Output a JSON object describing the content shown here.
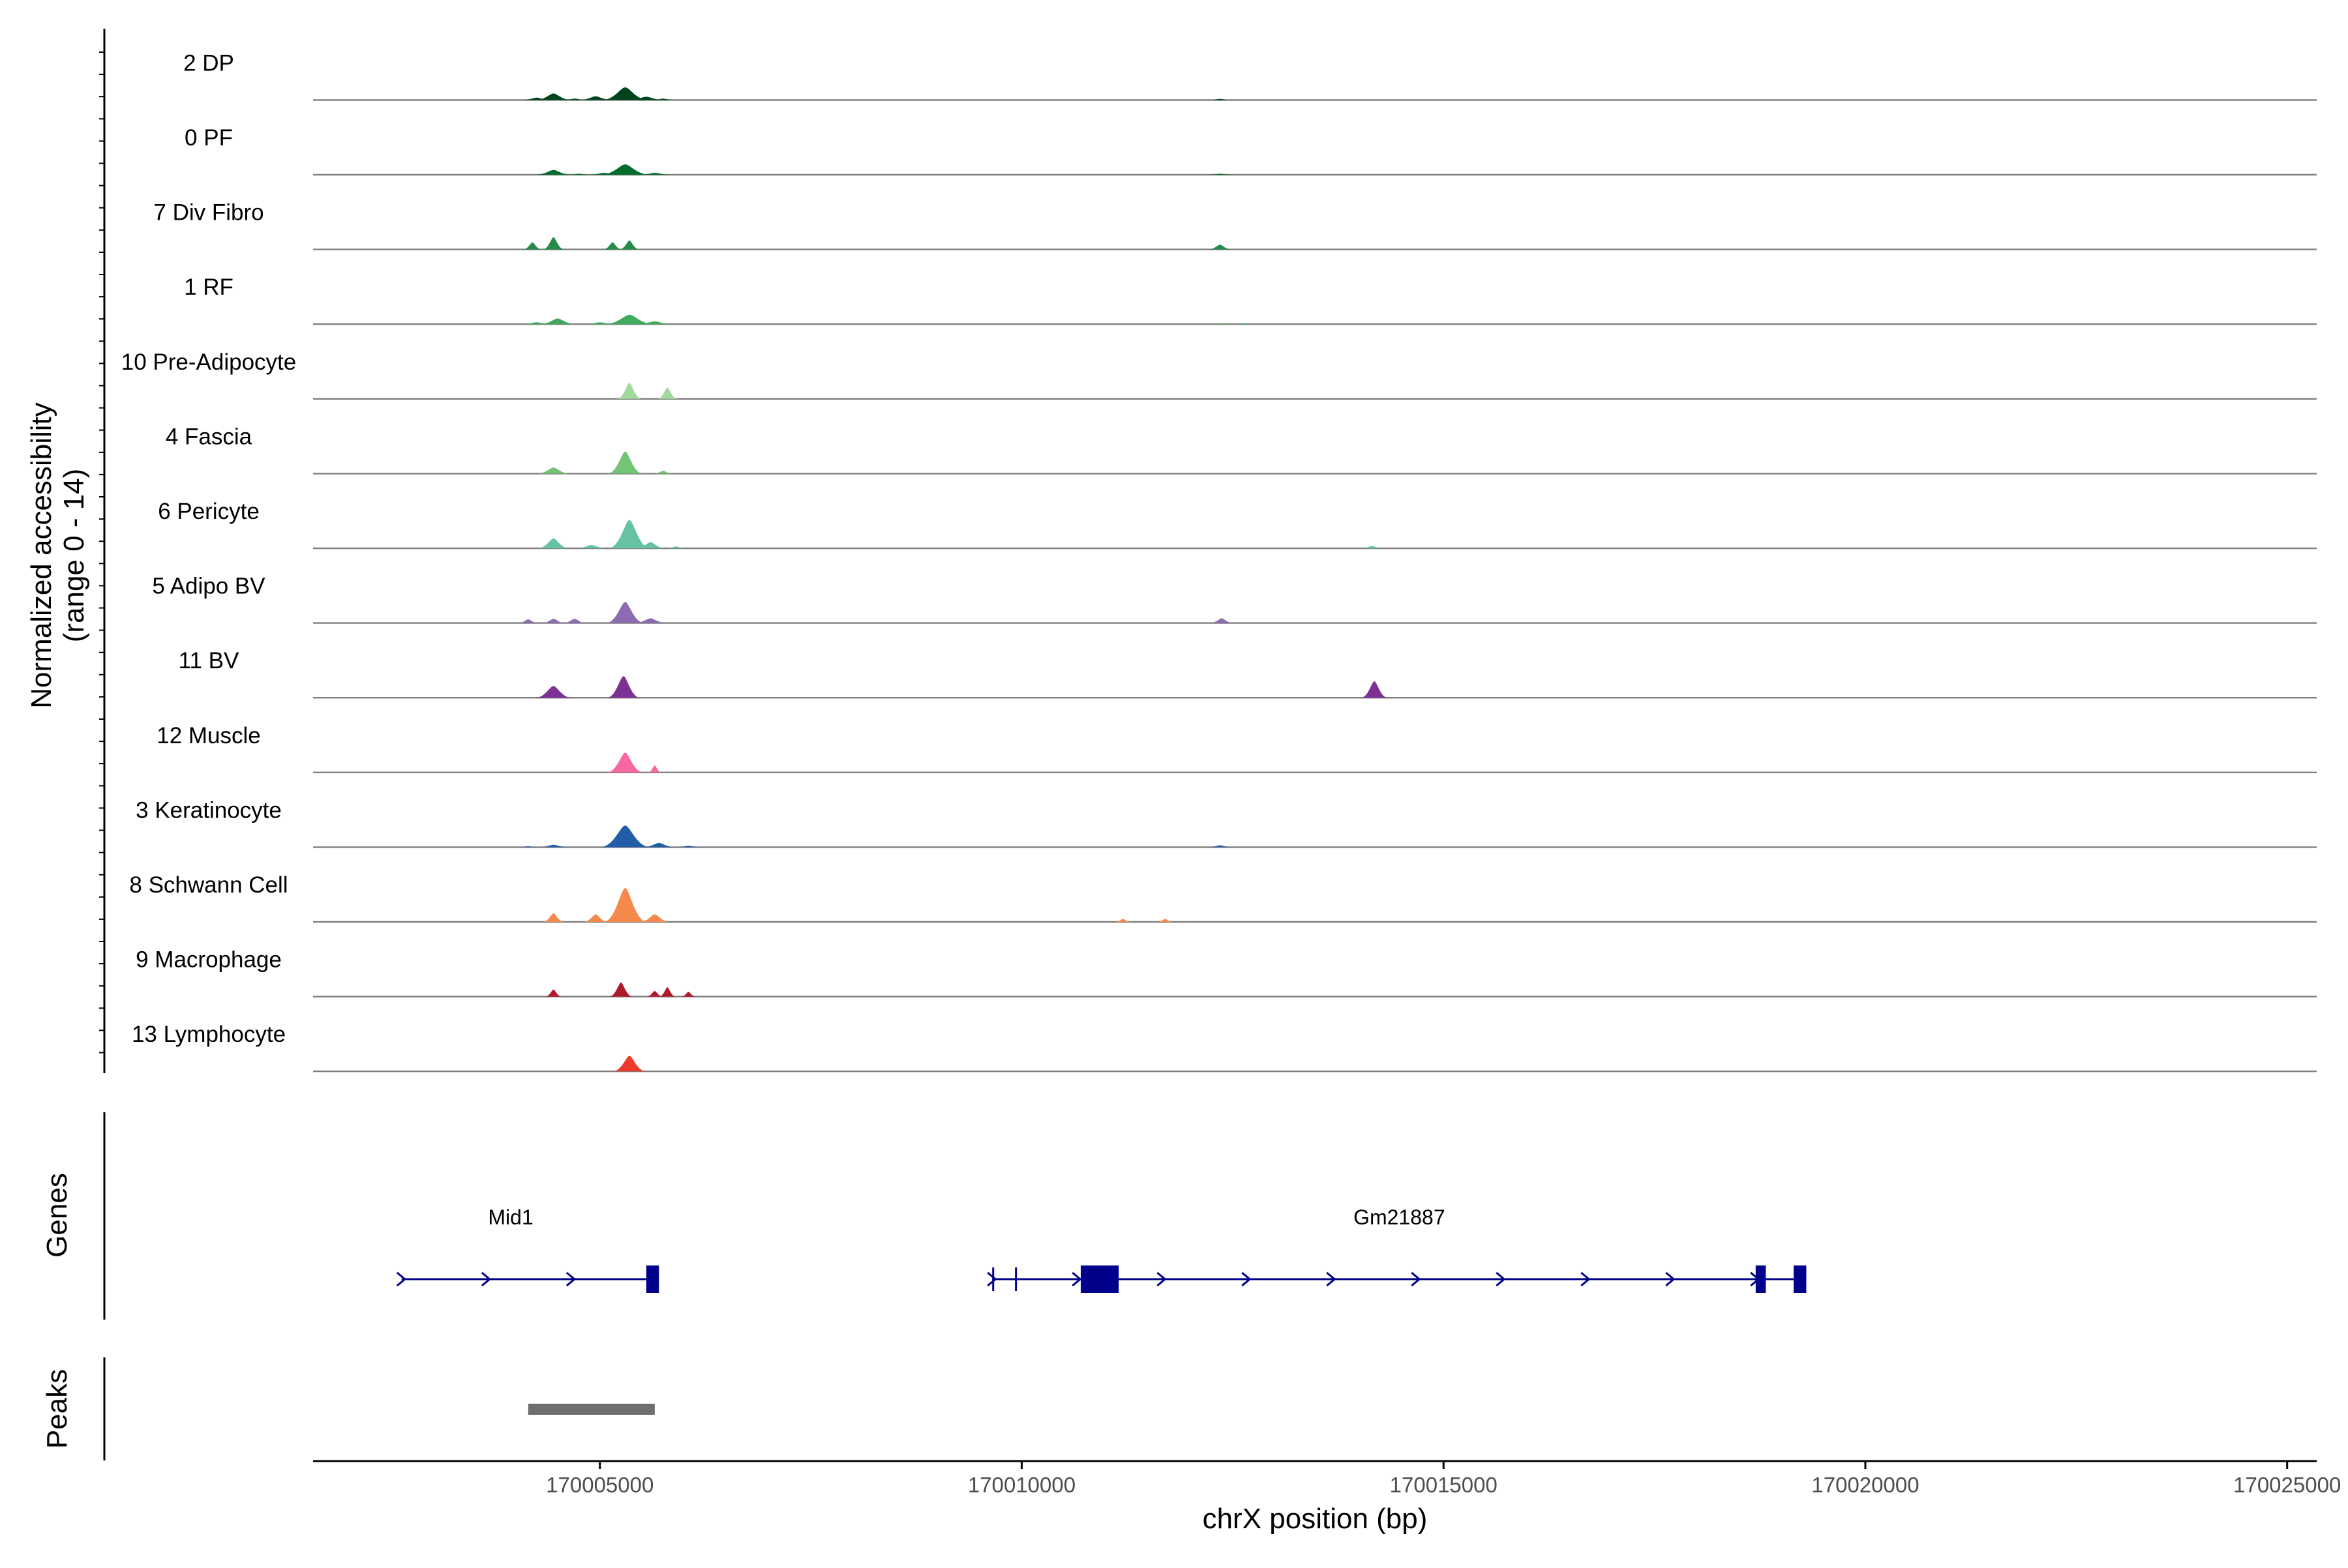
{
  "chart_data": {
    "type": "area",
    "title": "",
    "region": {
      "chrom": "chrX",
      "start": 170001600,
      "end": 170025350
    },
    "ylabel_line1": "Normalized accessibility",
    "ylabel_line2": "(range 0 - 14)",
    "ylim": [
      0,
      14
    ],
    "xlabel": "chrX position (bp)",
    "x_ticks": [
      {
        "value": 170005000,
        "label": "170005000"
      },
      {
        "value": 170010000,
        "label": "170010000"
      },
      {
        "value": 170015000,
        "label": "170015000"
      },
      {
        "value": 170020000,
        "label": "170020000"
      },
      {
        "value": 170025000,
        "label": "170025000"
      }
    ],
    "tracks": [
      {
        "name": "2 DP",
        "color": "#00441b",
        "peaks": [
          [
            170004250,
            0.5,
            180
          ],
          [
            170004450,
            1.4,
            220
          ],
          [
            170004700,
            0.3,
            150
          ],
          [
            170004950,
            0.8,
            200
          ],
          [
            170005300,
            2.7,
            280
          ],
          [
            170005550,
            0.7,
            220
          ],
          [
            170005750,
            0.3,
            150
          ],
          [
            170012350,
            0.25,
            140
          ]
        ]
      },
      {
        "name": "0 PF",
        "color": "#006d2c",
        "peaks": [
          [
            170004450,
            1.0,
            220
          ],
          [
            170004750,
            0.2,
            150
          ],
          [
            170005050,
            0.4,
            200
          ],
          [
            170005300,
            2.2,
            300
          ],
          [
            170005650,
            0.4,
            200
          ],
          [
            170012350,
            0.2,
            140
          ]
        ]
      },
      {
        "name": "7 Div Fibro",
        "color": "#238b45",
        "peaks": [
          [
            170004200,
            1.5,
            110
          ],
          [
            170004450,
            2.6,
            130
          ],
          [
            170005150,
            1.5,
            110
          ],
          [
            170005350,
            1.9,
            120
          ],
          [
            170012350,
            1.0,
            140
          ]
        ]
      },
      {
        "name": "1 RF",
        "color": "#41ab5d",
        "peaks": [
          [
            170004250,
            0.4,
            200
          ],
          [
            170004500,
            1.2,
            220
          ],
          [
            170005000,
            0.4,
            200
          ],
          [
            170005350,
            2.0,
            300
          ],
          [
            170005650,
            0.6,
            220
          ],
          [
            170012380,
            0.15,
            150
          ],
          [
            170012650,
            0.15,
            120
          ]
        ]
      },
      {
        "name": "10 Pre-Adipocyte",
        "color": "#a1d99b",
        "peaks": [
          [
            170005350,
            3.4,
            150
          ],
          [
            170005800,
            2.4,
            120
          ]
        ]
      },
      {
        "name": "4 Fascia",
        "color": "#74c476",
        "peaks": [
          [
            170004450,
            1.3,
            200
          ],
          [
            170005300,
            4.7,
            210
          ],
          [
            170005750,
            0.6,
            120
          ]
        ]
      },
      {
        "name": "6 Pericyte",
        "color": "#66c2a4",
        "peaks": [
          [
            170004450,
            2.1,
            190
          ],
          [
            170004900,
            0.7,
            200
          ],
          [
            170005350,
            6.0,
            250
          ],
          [
            170005600,
            1.3,
            180
          ],
          [
            170005900,
            0.4,
            120
          ],
          [
            170014150,
            0.5,
            130
          ]
        ]
      },
      {
        "name": "5 Adipo BV",
        "color": "#8c6bb1",
        "peaks": [
          [
            170004150,
            0.8,
            120
          ],
          [
            170004450,
            0.9,
            140
          ],
          [
            170004700,
            0.9,
            140
          ],
          [
            170005300,
            4.5,
            230
          ],
          [
            170005600,
            1.0,
            200
          ],
          [
            170012370,
            1.0,
            140
          ]
        ]
      },
      {
        "name": "11 BV",
        "color": "#7b3294",
        "peaks": [
          [
            170004450,
            2.5,
            220
          ],
          [
            170005280,
            4.6,
            200
          ],
          [
            170014180,
            3.5,
            160
          ]
        ]
      },
      {
        "name": "12 Muscle",
        "color": "#f768a1",
        "peaks": [
          [
            170005300,
            4.2,
            220
          ],
          [
            170005650,
            1.5,
            80
          ]
        ]
      },
      {
        "name": "3 Keratinocyte",
        "color": "#225ea8",
        "peaks": [
          [
            170004150,
            0.2,
            120
          ],
          [
            170004450,
            0.5,
            180
          ],
          [
            170005300,
            4.6,
            300
          ],
          [
            170005700,
            0.9,
            200
          ],
          [
            170006050,
            0.3,
            150
          ],
          [
            170012350,
            0.4,
            140
          ]
        ]
      },
      {
        "name": "8 Schwann Cell",
        "color": "#f4894b",
        "peaks": [
          [
            170004450,
            1.8,
            130
          ],
          [
            170004950,
            1.6,
            150
          ],
          [
            170005300,
            7.2,
            260
          ],
          [
            170005650,
            1.6,
            180
          ],
          [
            170011200,
            0.6,
            100
          ],
          [
            170011700,
            0.6,
            100
          ]
        ]
      },
      {
        "name": "9 Macrophage",
        "color": "#b2182b",
        "peaks": [
          [
            170004450,
            1.5,
            100
          ],
          [
            170005250,
            3.0,
            140
          ],
          [
            170005650,
            1.2,
            100
          ],
          [
            170005800,
            2.0,
            100
          ],
          [
            170006050,
            1.0,
            90
          ]
        ]
      },
      {
        "name": "13 Lymphocyte",
        "color": "#ef3b2c",
        "peaks": [
          [
            170005350,
            3.3,
            200
          ]
        ]
      }
    ],
    "genes_title": "Genes",
    "genes": [
      {
        "name": "Mid1",
        "start": 170002650,
        "end": 170005700,
        "strand": "+",
        "exons": [
          [
            170005550,
            170005700
          ]
        ]
      },
      {
        "name": "Gm21887",
        "start": 170009650,
        "end": 170019300,
        "strand": "+",
        "exons": [
          [
            170009650,
            170009670
          ],
          [
            170009920,
            170009940
          ],
          [
            170010700,
            170011150
          ],
          [
            170018700,
            170018820
          ],
          [
            170019150,
            170019300
          ]
        ]
      }
    ],
    "peaks_title": "Peaks",
    "peak_regions": [
      [
        170004150,
        170005650
      ]
    ]
  }
}
